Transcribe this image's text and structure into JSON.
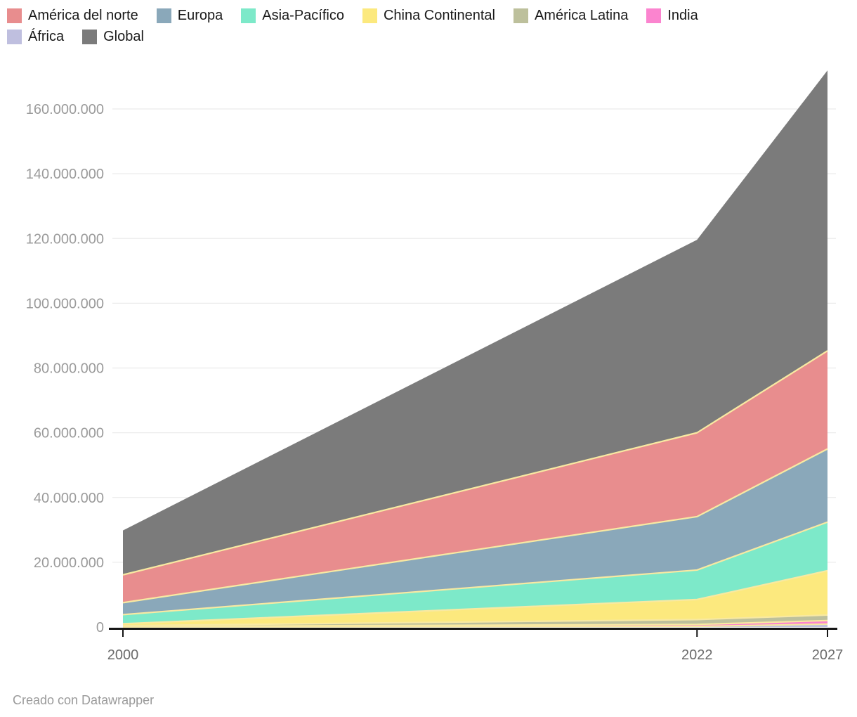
{
  "legend": {
    "rows": [
      [
        {
          "label": "América del norte",
          "color": "#e88d8e"
        },
        {
          "label": "Europa",
          "color": "#8aa8ba"
        },
        {
          "label": "Asia-Pacífico",
          "color": "#7de9c9"
        },
        {
          "label": "China Continental",
          "color": "#fce97e"
        },
        {
          "label": "América Latina",
          "color": "#bdc09c"
        },
        {
          "label": "India",
          "color": "#fb84cf"
        }
      ],
      [
        {
          "label": "África",
          "color": "#bfbfdf"
        },
        {
          "label": "Global",
          "color": "#7b7b7b"
        }
      ]
    ]
  },
  "chart_data": {
    "type": "area",
    "stacked": true,
    "x": [
      2000,
      2022,
      2027
    ],
    "series": [
      {
        "name": "África",
        "color": "#bfbfdf",
        "values": [
          50000,
          200000,
          900000
        ]
      },
      {
        "name": "India",
        "color": "#fb84cf",
        "values": [
          120000,
          600000,
          1100000
        ]
      },
      {
        "name": "América Latina",
        "color": "#bdc09c",
        "values": [
          250000,
          1500000,
          1700000
        ]
      },
      {
        "name": "China Continental",
        "color": "#fce97e",
        "values": [
          600000,
          6200000,
          13700000
        ]
      },
      {
        "name": "Asia-Pacífico",
        "color": "#7de9c9",
        "values": [
          2800000,
          9100000,
          15000000
        ]
      },
      {
        "name": "Europa",
        "color": "#8aa8ba",
        "values": [
          3700000,
          16500000,
          22600000
        ]
      },
      {
        "name": "América del norte",
        "color": "#e88d8e",
        "values": [
          8600000,
          25900000,
          30300000
        ]
      },
      {
        "name": "Global",
        "color": "#7b7b7b",
        "values": [
          13700000,
          59600000,
          86600000
        ]
      }
    ],
    "x_axis": {
      "ticks": [
        2000,
        2022,
        2027
      ]
    },
    "y_axis": {
      "ticks": [
        0,
        20000000,
        40000000,
        60000000,
        80000000,
        100000000,
        120000000,
        140000000,
        160000000
      ],
      "max": 160000000,
      "tick_label_format": "dot-separated"
    },
    "boundary_line_color": "#f8e9a2",
    "grid": true,
    "legend_position": "top"
  },
  "footer": {
    "credit": "Creado con Datawrapper"
  }
}
